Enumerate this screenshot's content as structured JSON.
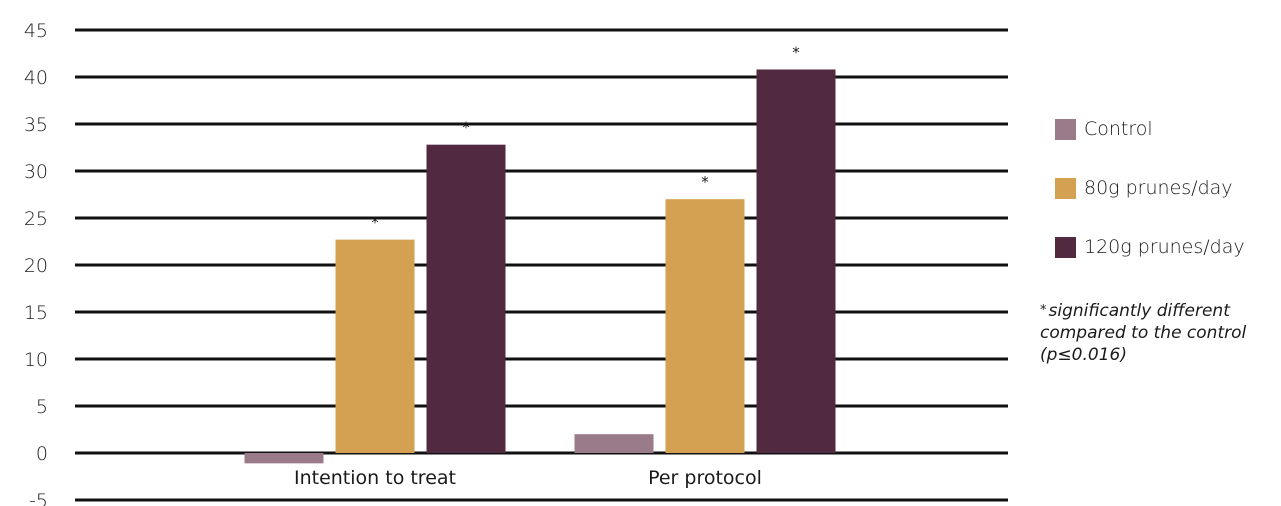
{
  "chart_data": {
    "type": "bar",
    "title": "",
    "xlabel": "",
    "ylabel": "",
    "categories": [
      "Intention to treat",
      "Per protocol"
    ],
    "ylim": [
      -5,
      45
    ],
    "yticks": [
      45,
      40,
      35,
      30,
      25,
      20,
      15,
      10,
      5,
      0,
      -5
    ],
    "grid": true,
    "legend_position": "right",
    "series": [
      {
        "name": "Control",
        "color": "#9a7b89",
        "values": [
          -1.1,
          2.0
        ],
        "significant": [
          false,
          false
        ]
      },
      {
        "name": "80g prunes/day",
        "color": "#d4a052",
        "values": [
          22.7,
          27.0
        ],
        "significant": [
          true,
          true
        ]
      },
      {
        "name": "120g prunes/day",
        "color": "#512a40",
        "values": [
          32.8,
          40.8
        ],
        "significant": [
          true,
          true
        ]
      }
    ],
    "significance_marker": "*",
    "annotation": "significantly different compared to the control (p≤0.016)"
  },
  "legend": {
    "items": [
      {
        "label": "Control",
        "color": "#9a7b89"
      },
      {
        "label": "80g prunes/day",
        "color": "#d4a052"
      },
      {
        "label": "120g prunes/day",
        "color": "#512a40"
      }
    ],
    "note_marker": "*",
    "note_text": "significantly different compared to the control (p≤0.016)"
  }
}
